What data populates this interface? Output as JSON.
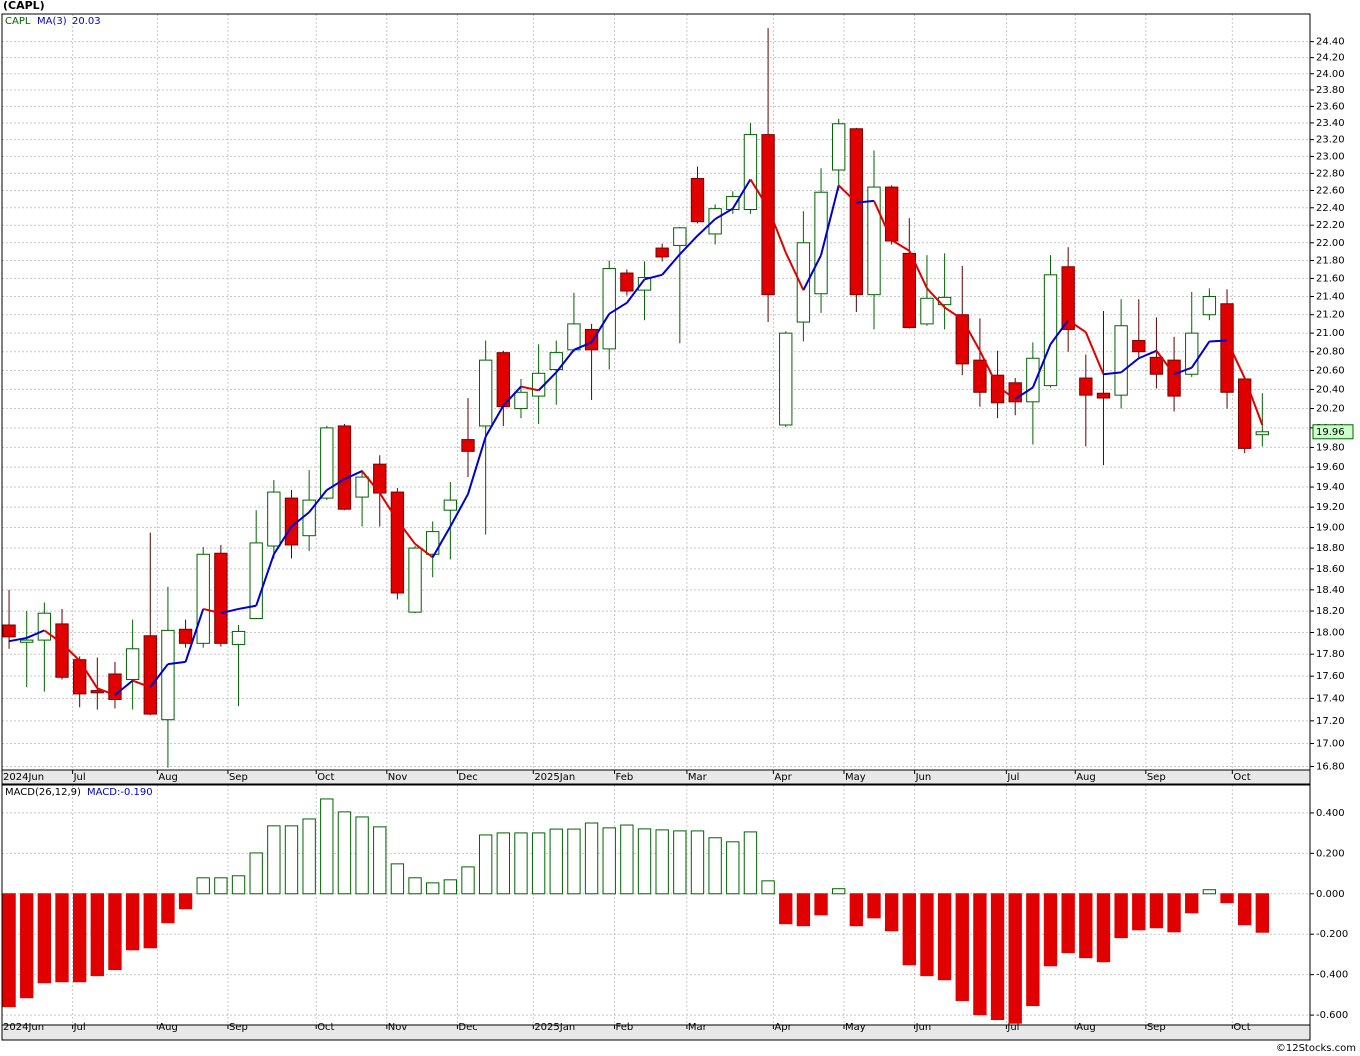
{
  "chart_data": [
    {
      "type": "candlestick",
      "title": "(CAPL)",
      "symbol": "CAPL",
      "log": true,
      "grid": true,
      "up_color": "#006400",
      "down_color": "#e00000",
      "open": [
        18.07,
        17.91,
        17.93,
        18.08,
        17.75,
        17.47,
        17.62,
        17.57,
        17.97,
        17.21,
        18.03,
        17.9,
        18.75,
        17.89,
        18.13,
        18.82,
        19.29,
        18.92,
        19.29,
        20.02,
        19.3,
        19.63,
        19.35,
        18.19,
        18.74,
        19.17,
        19.88,
        20.02,
        20.79,
        20.2,
        20.33,
        20.61,
        20.82,
        21.04,
        20.83,
        21.66,
        21.47,
        21.94,
        21.97,
        22.74,
        22.1,
        22.38,
        22.38,
        23.26,
        20.03,
        21.12,
        21.43,
        22.84,
        23.33,
        21.42,
        22.64,
        21.88,
        21.1,
        21.31,
        21.2,
        20.71,
        20.55,
        20.47,
        20.27,
        20.44,
        21.73,
        20.52,
        20.36,
        20.34,
        20.92,
        20.74,
        20.71,
        20.56,
        21.2,
        21.32,
        20.51,
        19.93
      ],
      "high": [
        18.4,
        18.2,
        18.28,
        18.22,
        17.78,
        17.77,
        17.73,
        18.12,
        18.95,
        18.43,
        18.12,
        18.81,
        18.83,
        18.07,
        19.17,
        19.47,
        19.37,
        19.57,
        20.02,
        20.04,
        19.57,
        19.72,
        19.39,
        18.82,
        19.06,
        19.45,
        20.31,
        20.92,
        20.81,
        20.51,
        20.88,
        20.92,
        21.44,
        21.1,
        21.8,
        21.7,
        21.79,
        21.99,
        22.18,
        22.88,
        22.44,
        22.59,
        23.4,
        24.57,
        21.02,
        22.36,
        22.86,
        23.45,
        23.34,
        23.07,
        22.66,
        22.28,
        21.86,
        21.88,
        21.74,
        21.16,
        20.81,
        20.52,
        20.9,
        21.86,
        21.95,
        20.77,
        21.24,
        21.37,
        21.37,
        21.17,
        20.96,
        21.45,
        21.49,
        21.48,
        20.52,
        20.36
      ],
      "low": [
        17.85,
        17.5,
        17.46,
        17.57,
        17.32,
        17.3,
        17.31,
        17.3,
        17.25,
        16.79,
        17.86,
        17.86,
        17.87,
        17.33,
        18.13,
        18.7,
        18.7,
        18.77,
        19.27,
        19.17,
        19.01,
        19.01,
        18.31,
        18.18,
        18.52,
        18.69,
        19.5,
        18.93,
        20.02,
        20.1,
        20.04,
        20.24,
        20.8,
        20.29,
        20.61,
        21.41,
        21.14,
        21.79,
        20.89,
        22.22,
        21.98,
        22.33,
        22.33,
        21.12,
        20.01,
        20.91,
        21.22,
        22.61,
        21.23,
        21.04,
        21.98,
        21.05,
        21.08,
        21.04,
        20.55,
        20.22,
        20.1,
        20.13,
        19.83,
        20.42,
        20.8,
        19.81,
        19.62,
        20.2,
        20.72,
        20.41,
        20.17,
        20.53,
        21.14,
        20.2,
        19.74,
        19.81
      ],
      "close": [
        17.96,
        17.93,
        18.18,
        17.59,
        17.44,
        17.45,
        17.39,
        17.85,
        17.26,
        18.02,
        17.9,
        18.74,
        17.9,
        18.01,
        18.85,
        19.35,
        18.83,
        19.27,
        20.0,
        19.18,
        19.5,
        19.34,
        18.37,
        18.8,
        18.96,
        19.27,
        19.76,
        20.71,
        20.22,
        20.37,
        20.57,
        20.79,
        21.1,
        20.82,
        21.71,
        21.46,
        21.61,
        21.84,
        22.17,
        22.24,
        22.39,
        22.53,
        23.26,
        21.42,
        21.0,
        22.0,
        22.58,
        23.39,
        21.42,
        22.64,
        22.02,
        21.06,
        21.38,
        21.39,
        20.67,
        20.37,
        20.26,
        20.27,
        20.73,
        21.64,
        21.04,
        20.34,
        20.31,
        21.08,
        20.8,
        20.56,
        20.33,
        21.0,
        21.4,
        20.37,
        19.79,
        19.96
      ],
      "ma": {
        "name": "MA(3)",
        "up_color": "#0000cc",
        "down_color": "#e00000",
        "values": [
          17.92,
          17.95,
          18.02,
          17.9,
          17.74,
          17.49,
          17.43,
          17.56,
          17.5,
          17.71,
          17.73,
          18.22,
          18.18,
          18.22,
          18.25,
          18.74,
          19.01,
          19.15,
          19.37,
          19.48,
          19.56,
          19.34,
          19.07,
          18.84,
          18.71,
          19.01,
          19.33,
          19.91,
          20.23,
          20.43,
          20.39,
          20.58,
          20.82,
          20.9,
          21.21,
          21.33,
          21.59,
          21.64,
          21.87,
          22.08,
          22.27,
          22.39,
          22.73,
          22.4,
          21.89,
          21.47,
          21.86,
          22.66,
          22.46,
          22.48,
          22.03,
          21.91,
          21.49,
          21.28,
          21.15,
          20.81,
          20.43,
          20.3,
          20.42,
          20.88,
          21.14,
          21.01,
          20.56,
          20.58,
          20.73,
          20.81,
          20.56,
          20.63,
          20.91,
          20.92,
          20.52,
          20.03
        ]
      },
      "xlim": [
        -0.4,
        73.7
      ],
      "xticks": [
        {
          "value": -0.4,
          "label": "2024Jun"
        },
        {
          "value": 3.6,
          "label": "Jul"
        },
        {
          "value": 8.4,
          "label": "Aug"
        },
        {
          "value": 12.4,
          "label": "Sep"
        },
        {
          "value": 17.4,
          "label": "Oct"
        },
        {
          "value": 21.4,
          "label": "Nov"
        },
        {
          "value": 25.4,
          "label": "Dec"
        },
        {
          "value": 29.7,
          "label": "2025Jan"
        },
        {
          "value": 34.3,
          "label": "Feb"
        },
        {
          "value": 38.4,
          "label": "Mar"
        },
        {
          "value": 43.3,
          "label": "Apr"
        },
        {
          "value": 47.3,
          "label": "May"
        },
        {
          "value": 51.3,
          "label": "Jun"
        },
        {
          "value": 56.5,
          "label": "Jul"
        },
        {
          "value": 60.4,
          "label": "Aug"
        },
        {
          "value": 64.4,
          "label": "Sep"
        },
        {
          "value": 69.3,
          "label": "Oct"
        }
      ],
      "ylim": [
        16.77,
        24.75
      ],
      "yticks": [
        {
          "value": 16.8,
          "label": "16.80"
        },
        {
          "value": 17.0,
          "label": "17.00"
        },
        {
          "value": 17.2,
          "label": "17.20"
        },
        {
          "value": 17.4,
          "label": "17.40"
        },
        {
          "value": 17.6,
          "label": "17.60"
        },
        {
          "value": 17.8,
          "label": "17.80"
        },
        {
          "value": 18.0,
          "label": "18.00"
        },
        {
          "value": 18.2,
          "label": "18.20"
        },
        {
          "value": 18.4,
          "label": "18.40"
        },
        {
          "value": 18.6,
          "label": "18.60"
        },
        {
          "value": 18.8,
          "label": "18.80"
        },
        {
          "value": 19.0,
          "label": "19.00"
        },
        {
          "value": 19.2,
          "label": "19.20"
        },
        {
          "value": 19.4,
          "label": "19.40"
        },
        {
          "value": 19.6,
          "label": "19.60"
        },
        {
          "value": 19.8,
          "label": "19.80"
        },
        {
          "value": 20.0,
          "label": "20.00"
        },
        {
          "value": 20.2,
          "label": "20.20"
        },
        {
          "value": 20.4,
          "label": "20.40"
        },
        {
          "value": 20.6,
          "label": "20.60"
        },
        {
          "value": 20.8,
          "label": "20.80"
        },
        {
          "value": 21.0,
          "label": "21.00"
        },
        {
          "value": 21.2,
          "label": "21.20"
        },
        {
          "value": 21.4,
          "label": "21.40"
        },
        {
          "value": 21.6,
          "label": "21.60"
        },
        {
          "value": 21.8,
          "label": "21.80"
        },
        {
          "value": 22.0,
          "label": "22.00"
        },
        {
          "value": 22.2,
          "label": "22.20"
        },
        {
          "value": 22.4,
          "label": "22.40"
        },
        {
          "value": 22.6,
          "label": "22.60"
        },
        {
          "value": 22.8,
          "label": "22.80"
        },
        {
          "value": 23.0,
          "label": "23.00"
        },
        {
          "value": 23.2,
          "label": "23.20"
        },
        {
          "value": 23.4,
          "label": "23.40"
        },
        {
          "value": 23.6,
          "label": "23.60"
        },
        {
          "value": 23.8,
          "label": "23.80"
        },
        {
          "value": 24.0,
          "label": "24.00"
        },
        {
          "value": 24.2,
          "label": "24.20"
        },
        {
          "value": 24.4,
          "label": "24.40"
        }
      ]
    },
    {
      "type": "bar",
      "name": "MACD(26,12,9)",
      "value_text": "MACD:-0.190",
      "grid": true,
      "up_color": "#006400",
      "down_color": "#e00000",
      "values": [
        -0.558,
        -0.514,
        -0.44,
        -0.435,
        -0.435,
        -0.405,
        -0.375,
        -0.277,
        -0.267,
        -0.143,
        -0.074,
        0.079,
        0.079,
        0.089,
        0.202,
        0.336,
        0.336,
        0.37,
        0.469,
        0.405,
        0.38,
        0.331,
        0.148,
        0.079,
        0.054,
        0.069,
        0.133,
        0.291,
        0.301,
        0.301,
        0.301,
        0.32,
        0.32,
        0.35,
        0.326,
        0.34,
        0.321,
        0.316,
        0.311,
        0.311,
        0.277,
        0.257,
        0.306,
        0.064,
        -0.148,
        -0.158,
        -0.104,
        0.025,
        -0.158,
        -0.119,
        -0.183,
        -0.351,
        -0.405,
        -0.425,
        -0.528,
        -0.598,
        -0.622,
        -0.64,
        -0.553,
        -0.356,
        -0.291,
        -0.316,
        -0.336,
        -0.217,
        -0.178,
        -0.168,
        -0.188,
        -0.094,
        0.02,
        -0.044,
        -0.153,
        -0.19
      ],
      "xlim": [
        -0.4,
        73.7
      ],
      "xticks": [
        {
          "value": -0.4,
          "label": "2024Jun"
        },
        {
          "value": 3.6,
          "label": "Jul"
        },
        {
          "value": 8.4,
          "label": "Aug"
        },
        {
          "value": 12.4,
          "label": "Sep"
        },
        {
          "value": 17.4,
          "label": "Oct"
        },
        {
          "value": 21.4,
          "label": "Nov"
        },
        {
          "value": 25.4,
          "label": "Dec"
        },
        {
          "value": 29.7,
          "label": "2025Jan"
        },
        {
          "value": 34.3,
          "label": "Feb"
        },
        {
          "value": 38.4,
          "label": "Mar"
        },
        {
          "value": 43.3,
          "label": "Apr"
        },
        {
          "value": 47.3,
          "label": "May"
        },
        {
          "value": 51.3,
          "label": "Jun"
        },
        {
          "value": 56.5,
          "label": "Jul"
        },
        {
          "value": 60.4,
          "label": "Aug"
        },
        {
          "value": 64.4,
          "label": "Sep"
        },
        {
          "value": 69.3,
          "label": "Oct"
        }
      ],
      "ylim": [
        -0.649,
        0.538
      ],
      "yticks": [
        {
          "value": -0.6,
          "label": "-0.600"
        },
        {
          "value": -0.4,
          "label": "-0.400"
        },
        {
          "value": -0.2,
          "label": "-0.200"
        },
        {
          "value": 0,
          "label": "0.000"
        },
        {
          "value": 0.2,
          "label": "0.200"
        },
        {
          "value": 0.4,
          "label": "0.400"
        }
      ]
    }
  ],
  "footer": "©12Stocks.com"
}
